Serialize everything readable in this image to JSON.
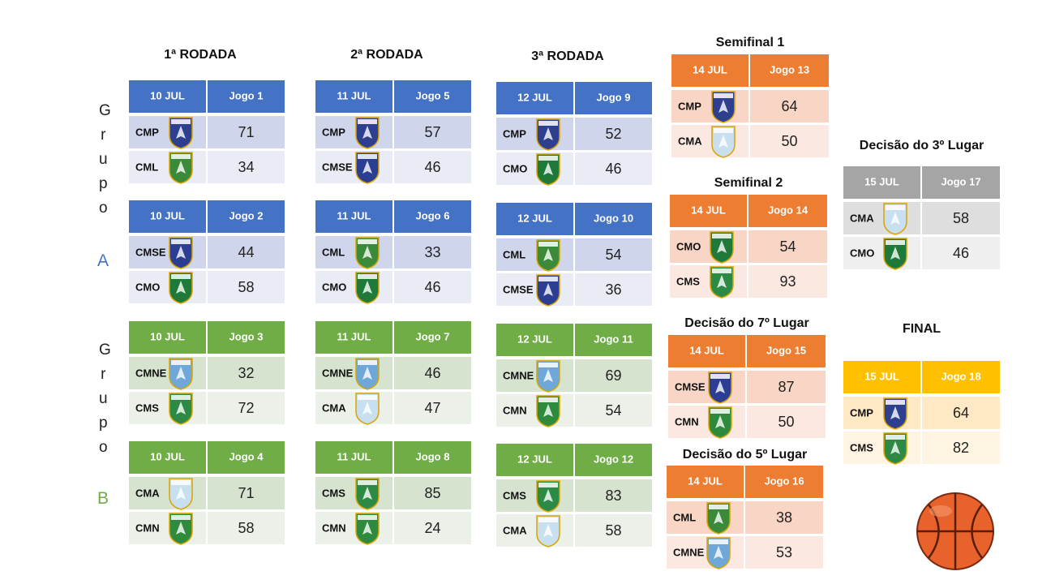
{
  "rounds": [
    "1ª RODADA",
    "2ª RODADA",
    "3ª RODADA"
  ],
  "groups": [
    {
      "word": "Grupo",
      "letter": "A"
    },
    {
      "word": "Grupo",
      "letter": "B"
    }
  ],
  "crests": {
    "CMP": "#2e3f8f",
    "CML": "#3a8a3a",
    "CMSE": "#2c3e94",
    "CMO": "#1f7a3a",
    "CMNE": "#6fa8d8",
    "CMS": "#2d8a45",
    "CMA": "#c8dff0",
    "CMN": "#2e8b3e"
  },
  "games": [
    {
      "date": "10 JUL",
      "game": "Jogo 1",
      "teams": [
        {
          "name": "CMP",
          "score": 71
        },
        {
          "name": "CML",
          "score": 34
        }
      ]
    },
    {
      "date": "10 JUL",
      "game": "Jogo 2",
      "teams": [
        {
          "name": "CMSE",
          "score": 44
        },
        {
          "name": "CMO",
          "score": 58
        }
      ]
    },
    {
      "date": "10 JUL",
      "game": "Jogo 3",
      "teams": [
        {
          "name": "CMNE",
          "score": 32
        },
        {
          "name": "CMS",
          "score": 72
        }
      ]
    },
    {
      "date": "10 JUL",
      "game": "Jogo 4",
      "teams": [
        {
          "name": "CMA",
          "score": 71
        },
        {
          "name": "CMN",
          "score": 58
        }
      ]
    },
    {
      "date": "11 JUL",
      "game": "Jogo 5",
      "teams": [
        {
          "name": "CMP",
          "score": 57
        },
        {
          "name": "CMSE",
          "score": 46
        }
      ]
    },
    {
      "date": "11 JUL",
      "game": "Jogo 6",
      "teams": [
        {
          "name": "CML",
          "score": 33
        },
        {
          "name": "CMO",
          "score": 46
        }
      ]
    },
    {
      "date": "11 JUL",
      "game": "Jogo 7",
      "teams": [
        {
          "name": "CMNE",
          "score": 46
        },
        {
          "name": "CMA",
          "score": 47
        }
      ]
    },
    {
      "date": "11 JUL",
      "game": "Jogo 8",
      "teams": [
        {
          "name": "CMS",
          "score": 85
        },
        {
          "name": "CMN",
          "score": 24
        }
      ]
    },
    {
      "date": "12 JUL",
      "game": "Jogo 9",
      "teams": [
        {
          "name": "CMP",
          "score": 52
        },
        {
          "name": "CMO",
          "score": 46
        }
      ]
    },
    {
      "date": "12 JUL",
      "game": "Jogo 10",
      "teams": [
        {
          "name": "CML",
          "score": 54
        },
        {
          "name": "CMSE",
          "score": 36
        }
      ]
    },
    {
      "date": "12 JUL",
      "game": "Jogo 11",
      "teams": [
        {
          "name": "CMNE",
          "score": 69
        },
        {
          "name": "CMN",
          "score": 54
        }
      ]
    },
    {
      "date": "12 JUL",
      "game": "Jogo 12",
      "teams": [
        {
          "name": "CMS",
          "score": 83
        },
        {
          "name": "CMA",
          "score": 58
        }
      ]
    },
    {
      "title": "Semifinal 1",
      "date": "14 JUL",
      "game": "Jogo 13",
      "teams": [
        {
          "name": "CMP",
          "score": 64
        },
        {
          "name": "CMA",
          "score": 50
        }
      ]
    },
    {
      "title": "Semifinal 2",
      "date": "14 JUL",
      "game": "Jogo 14",
      "teams": [
        {
          "name": "CMO",
          "score": 54
        },
        {
          "name": "CMS",
          "score": 93
        }
      ]
    },
    {
      "title": "Decisão do 7º Lugar",
      "date": "14 JUL",
      "game": "Jogo 15",
      "teams": [
        {
          "name": "CMSE",
          "score": 87
        },
        {
          "name": "CMN",
          "score": 50
        }
      ]
    },
    {
      "title": "Decisão do 5º Lugar",
      "date": "14 JUL",
      "game": "Jogo 16",
      "teams": [
        {
          "name": "CML",
          "score": 38
        },
        {
          "name": "CMNE",
          "score": 53
        }
      ]
    },
    {
      "title": "Decisão do 3º Lugar",
      "date": "15 JUL",
      "game": "Jogo 17",
      "teams": [
        {
          "name": "CMA",
          "score": 58
        },
        {
          "name": "CMO",
          "score": 46
        }
      ]
    },
    {
      "title": "FINAL",
      "date": "15 JUL",
      "game": "Jogo 18",
      "teams": [
        {
          "name": "CMP",
          "score": 64
        },
        {
          "name": "CMS",
          "score": 82
        }
      ]
    }
  ]
}
